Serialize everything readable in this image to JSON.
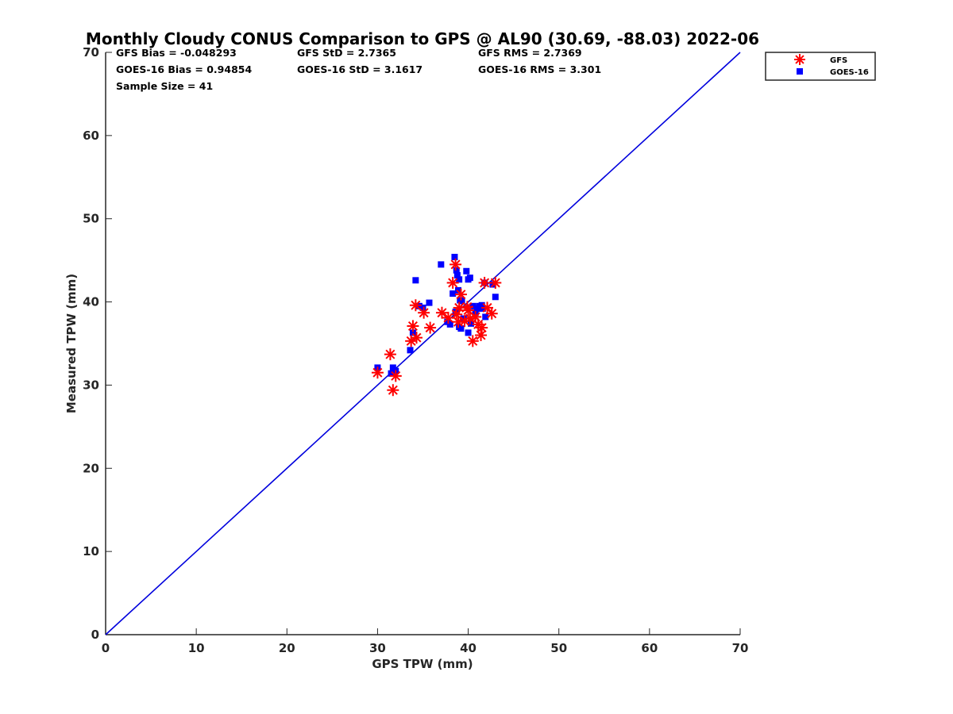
{
  "chart_data": {
    "type": "scatter",
    "title": "Monthly Cloudy CONUS Comparison to GPS @ AL90 (30.69, -88.03) 2022-06",
    "xlabel": "GPS TPW (mm)",
    "ylabel": "Measured TPW (mm)",
    "xlim": [
      0,
      70
    ],
    "ylim": [
      0,
      70
    ],
    "xticks": [
      "0",
      "10",
      "20",
      "30",
      "40",
      "50",
      "60",
      "70"
    ],
    "yticks": [
      "0",
      "10",
      "20",
      "30",
      "40",
      "50",
      "60",
      "70"
    ],
    "grid": false,
    "legend_position": "top-right",
    "stats": {
      "gfs_bias": "GFS Bias = -0.048293",
      "gfs_std": "GFS StD = 2.7365",
      "gfs_rms": "GFS RMS = 2.7369",
      "goes_bias": "GOES-16 Bias = 0.94854",
      "goes_std": "GOES-16 StD = 3.1617",
      "goes_rms": "GOES-16 RMS = 3.301",
      "sample_size": "Sample Size = 41"
    },
    "reference_line": {
      "x": [
        0,
        70
      ],
      "y": [
        0,
        70
      ],
      "color": "#0000dd"
    },
    "series": [
      {
        "name": "GFS",
        "marker": "asterisk",
        "color": "#ff0000",
        "points": [
          [
            30.0,
            31.5
          ],
          [
            31.4,
            33.7
          ],
          [
            31.7,
            29.4
          ],
          [
            32.0,
            31.1
          ],
          [
            33.7,
            35.3
          ],
          [
            33.9,
            37.1
          ],
          [
            34.3,
            35.7
          ],
          [
            34.2,
            39.6
          ],
          [
            35.1,
            38.7
          ],
          [
            35.8,
            36.9
          ],
          [
            37.1,
            38.7
          ],
          [
            37.8,
            38.1
          ],
          [
            38.3,
            42.3
          ],
          [
            38.6,
            44.5
          ],
          [
            38.7,
            38.5
          ],
          [
            39.0,
            39.3
          ],
          [
            39.2,
            40.9
          ],
          [
            39.6,
            37.7
          ],
          [
            39.9,
            39.4
          ],
          [
            40.2,
            38.0
          ],
          [
            40.5,
            35.3
          ],
          [
            40.8,
            38.2
          ],
          [
            41.1,
            37.3
          ],
          [
            41.4,
            36.0
          ],
          [
            41.5,
            36.9
          ],
          [
            41.8,
            42.3
          ],
          [
            42.1,
            39.3
          ],
          [
            42.6,
            38.6
          ],
          [
            43.0,
            42.3
          ],
          [
            38.9,
            37.6
          ],
          [
            40.0,
            39.0
          ]
        ]
      },
      {
        "name": "GOES-16",
        "marker": "square",
        "color": "#0000ff",
        "points": [
          [
            30.0,
            32.1
          ],
          [
            31.5,
            31.4
          ],
          [
            31.7,
            32.1
          ],
          [
            32.0,
            31.7
          ],
          [
            33.6,
            34.2
          ],
          [
            33.9,
            36.3
          ],
          [
            34.2,
            42.6
          ],
          [
            34.6,
            39.5
          ],
          [
            35.0,
            39.3
          ],
          [
            35.7,
            39.9
          ],
          [
            37.0,
            44.5
          ],
          [
            37.7,
            37.6
          ],
          [
            38.0,
            37.3
          ],
          [
            38.3,
            41.0
          ],
          [
            38.5,
            45.4
          ],
          [
            38.7,
            43.8
          ],
          [
            38.8,
            43.2
          ],
          [
            38.9,
            41.4
          ],
          [
            39.0,
            42.7
          ],
          [
            39.1,
            40.2
          ],
          [
            39.2,
            36.8
          ],
          [
            39.3,
            40.1
          ],
          [
            39.5,
            38.0
          ],
          [
            39.8,
            43.7
          ],
          [
            40.0,
            42.7
          ],
          [
            40.0,
            36.3
          ],
          [
            40.2,
            42.9
          ],
          [
            40.5,
            39.5
          ],
          [
            40.8,
            38.7
          ],
          [
            41.0,
            39.2
          ],
          [
            41.2,
            39.5
          ],
          [
            41.5,
            39.6
          ],
          [
            41.8,
            42.3
          ],
          [
            41.9,
            38.2
          ],
          [
            42.7,
            42.1
          ],
          [
            43.0,
            40.6
          ],
          [
            39.0,
            37.0
          ],
          [
            38.6,
            38.8
          ],
          [
            40.3,
            37.4
          ],
          [
            39.4,
            37.9
          ],
          [
            41.6,
            39.2
          ]
        ]
      }
    ]
  }
}
